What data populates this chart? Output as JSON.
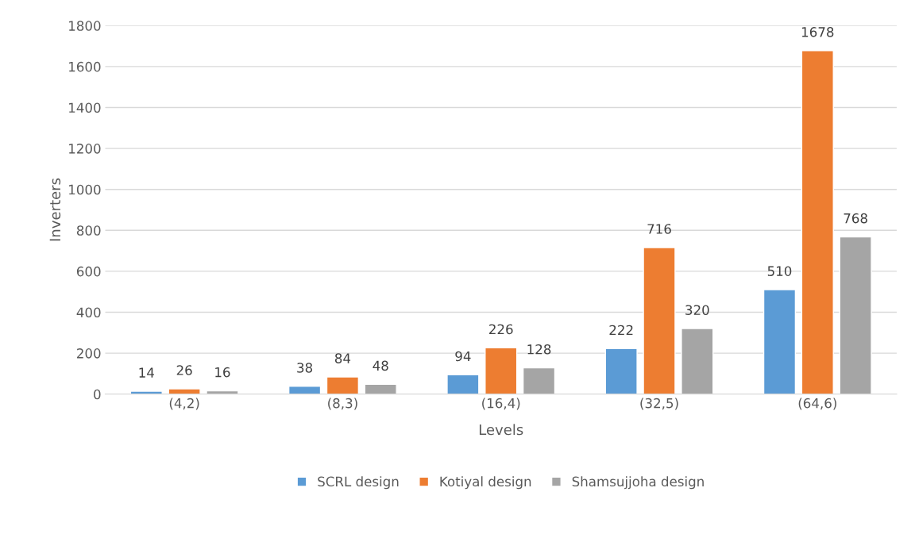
{
  "chart_data": {
    "type": "bar",
    "xlabel": "Levels",
    "ylabel": "Inverters",
    "categories": [
      "(4,2)",
      "(8,3)",
      "(16,4)",
      "(32,5)",
      "(64,6)"
    ],
    "series": [
      {
        "name": "SCRL design",
        "color": "#5b9bd5",
        "values": [
          14,
          38,
          94,
          222,
          510
        ]
      },
      {
        "name": "Kotiyal design",
        "color": "#ed7d31",
        "values": [
          26,
          84,
          226,
          716,
          1678
        ]
      },
      {
        "name": "Shamsujjoha design",
        "color": "#a5a5a5",
        "values": [
          16,
          48,
          128,
          320,
          768
        ]
      }
    ],
    "ylim": [
      0,
      1800
    ],
    "yticks": [
      0,
      200,
      400,
      600,
      800,
      1000,
      1200,
      1400,
      1600,
      1800
    ],
    "grid": "y",
    "legend": "bottom",
    "data_labels": true
  }
}
